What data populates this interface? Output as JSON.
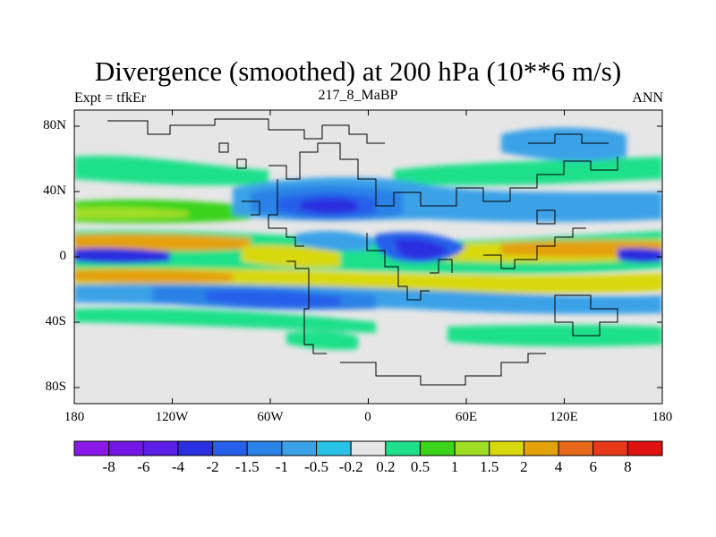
{
  "title": "Divergence (smoothed) at 200 hPa (10**6 m/s)",
  "subtitle_left": "Expt = tfkEr",
  "subtitle_center": "217_8_MaBP",
  "subtitle_right": "ANN",
  "lat_ticks": [
    "80N",
    "40N",
    "0",
    "40S",
    "80S"
  ],
  "lon_ticks": [
    "180",
    "120W",
    "60W",
    "0",
    "60E",
    "120E",
    "180"
  ],
  "colorbar": {
    "labels": [
      "-8",
      "-6",
      "-4",
      "-2",
      "-1.5",
      "-1",
      "-0.5",
      "-0.2",
      "0.2",
      "0.5",
      "1",
      "1.5",
      "2",
      "4",
      "6",
      "8"
    ],
    "colors": [
      "#8a19e8",
      "#7417e6",
      "#5a1ee6",
      "#2a2fe0",
      "#2660ea",
      "#2b82e6",
      "#3aa2e8",
      "#28c2e6",
      "#e6e6e6",
      "#1fe08a",
      "#3ad41a",
      "#a0de25",
      "#d8d80f",
      "#e3a10a",
      "#e8691a",
      "#e83a1a",
      "#e01212"
    ]
  }
}
